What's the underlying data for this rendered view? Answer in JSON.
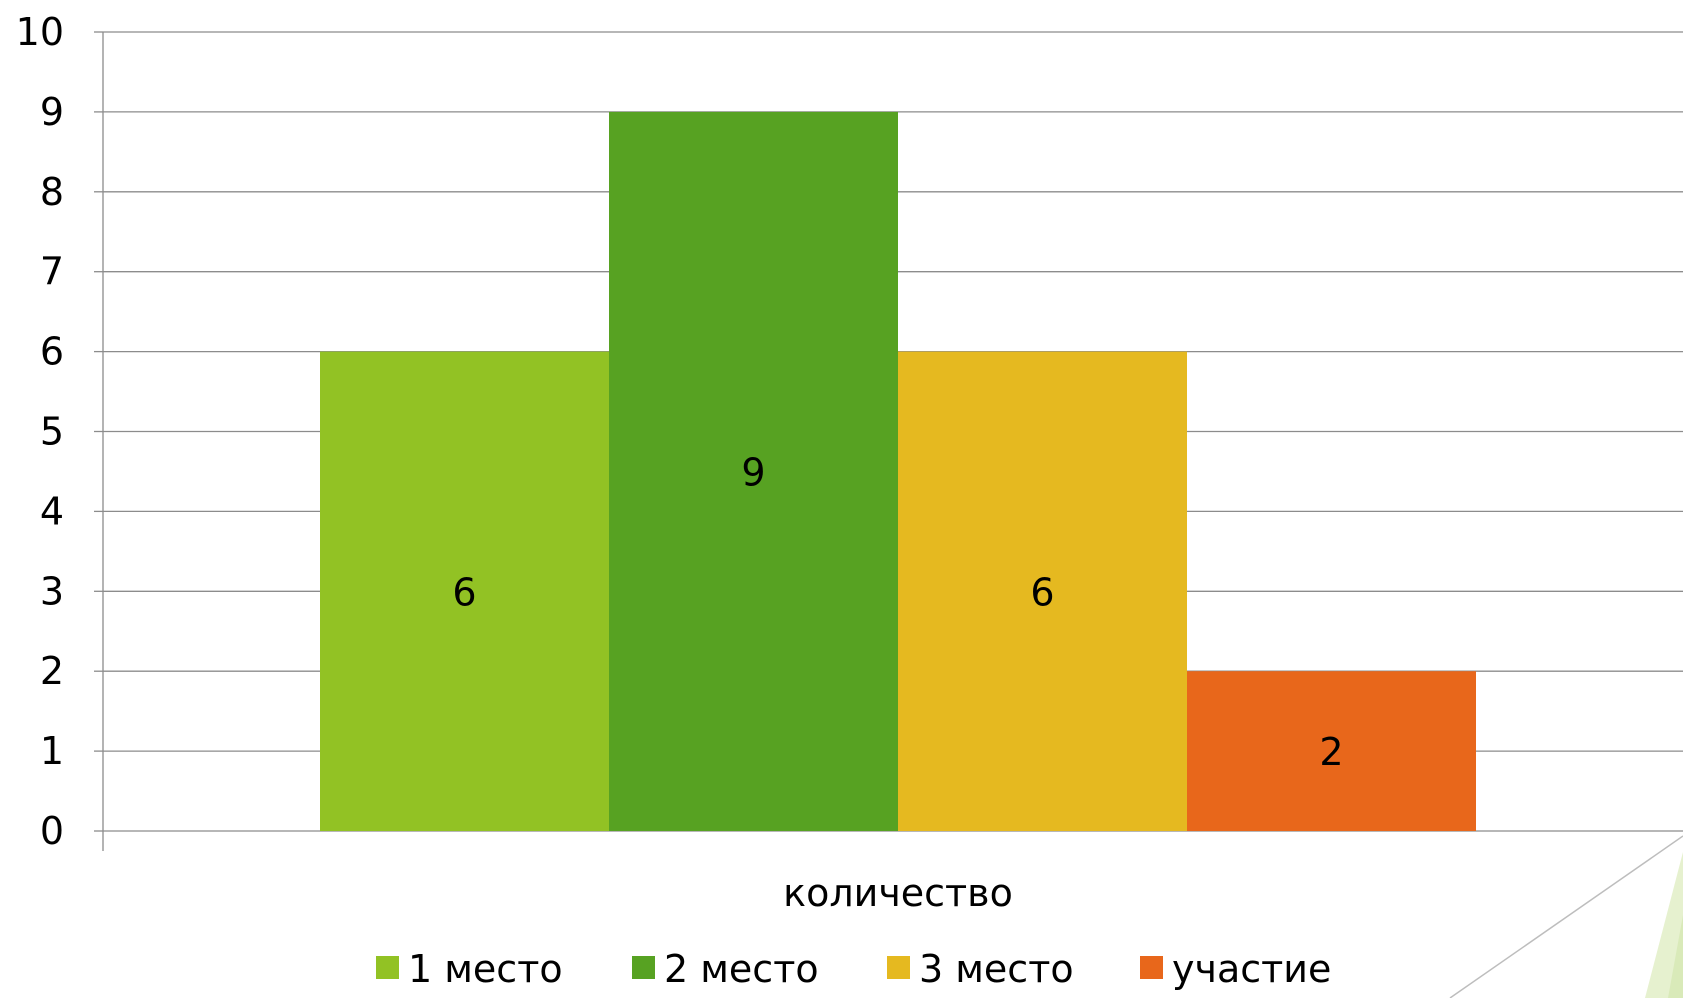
{
  "chart_data": {
    "type": "bar",
    "categories": [
      "количество"
    ],
    "series": [
      {
        "name": "1 место",
        "values": [
          6
        ],
        "color": "#92c224"
      },
      {
        "name": "2 место",
        "values": [
          9
        ],
        "color": "#57a222"
      },
      {
        "name": "3 место",
        "values": [
          6
        ],
        "color": "#e5b920"
      },
      {
        "name": "участие",
        "values": [
          2
        ],
        "color": "#e8671b"
      }
    ],
    "yticks": [
      "0",
      "1",
      "2",
      "3",
      "4",
      "5",
      "6",
      "7",
      "8",
      "9",
      "10"
    ],
    "ylim": [
      0,
      10
    ],
    "grid": true,
    "legend_position": "bottom",
    "data_labels": true
  }
}
